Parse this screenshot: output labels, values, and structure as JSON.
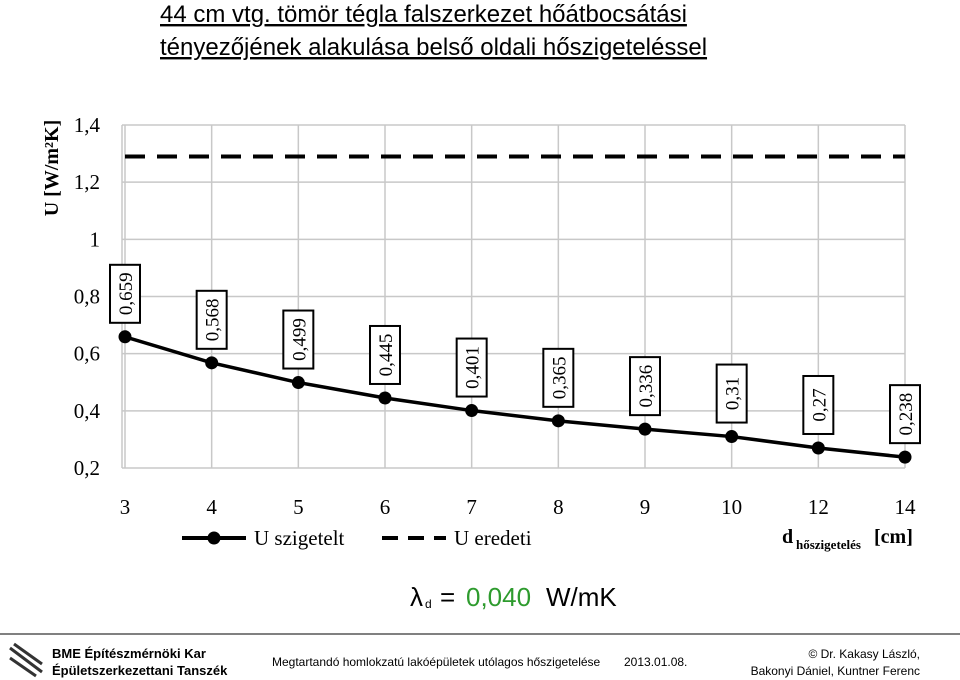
{
  "title_lines": [
    "44 cm vtg. tömör tégla falszerkezet hőátbocsátási",
    "tényezőjének alakulása belső oldali hőszigeteléssel"
  ],
  "chart_data": {
    "type": "line",
    "y_label": "U [W/m²K]",
    "x_label": {
      "main": "d",
      "sub": "hőszigetelés",
      "unit": "[cm]"
    },
    "categories": [
      "3",
      "4",
      "5",
      "6",
      "7",
      "8",
      "9",
      "10",
      "12",
      "14"
    ],
    "series": [
      {
        "name": "U szigetelt",
        "color": "#000000",
        "dashed": false,
        "markers": true,
        "values": [
          0.659,
          0.568,
          0.499,
          0.445,
          0.401,
          0.365,
          0.336,
          0.31,
          0.27,
          0.238
        ],
        "value_labels": [
          "0,659",
          "0,568",
          "0,499",
          "0,445",
          "0,401",
          "0,365",
          "0,336",
          "0,31",
          "0,27",
          "0,238"
        ]
      },
      {
        "name": "U eredeti",
        "color": "#000000",
        "dashed": true,
        "markers": false,
        "values": [
          1.29,
          1.29,
          1.29,
          1.29,
          1.29,
          1.29,
          1.29,
          1.29,
          1.29,
          1.29
        ]
      }
    ],
    "ylim": [
      0.2,
      1.4
    ],
    "yticks": [
      {
        "value": 0.2,
        "label": "0,2"
      },
      {
        "value": 0.4,
        "label": "0,4"
      },
      {
        "value": 0.6,
        "label": "0,6"
      },
      {
        "value": 0.8,
        "label": "0,8"
      },
      1,
      {
        "value": 1.2,
        "label": "1,2"
      },
      {
        "value": 1.4,
        "label": "1,4"
      }
    ],
    "grid": true
  },
  "lambda": {
    "symbol": "λ",
    "sub": "d",
    "eq": "=",
    "value": "0,040",
    "unit": "W/mK"
  },
  "footer": {
    "left": [
      "BME Építészmérnöki Kar",
      "Épületszerkezettani Tanszék"
    ],
    "center": "Megtartandó homlokzatú lakóépületek utólagos hőszigetelése",
    "date": "2013.01.08.",
    "right": [
      "© Dr. Kakasy László,",
      "Bakonyi Dániel, Kuntner Ferenc"
    ]
  }
}
